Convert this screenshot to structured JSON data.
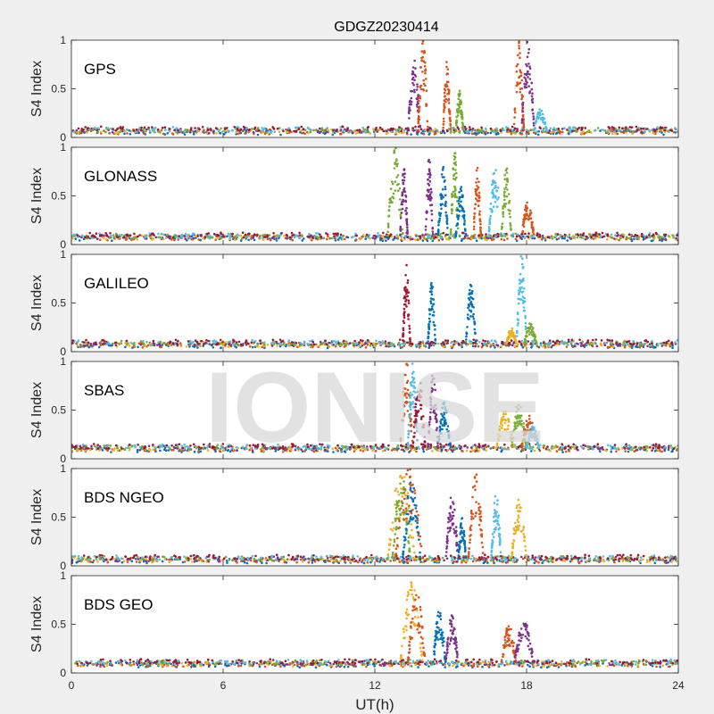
{
  "figure": {
    "title": "GDGZ20230414",
    "xlabel": "UT(h)",
    "watermark": "IONISE",
    "series_colors": [
      "#0072BD",
      "#D95319",
      "#EDB120",
      "#7E2F8E",
      "#77AC30",
      "#4DBEEE",
      "#A2142F"
    ]
  },
  "chart_data": [
    {
      "type": "scatter",
      "panel_label": "GPS",
      "ylabel": "S4 Index",
      "xlim": [
        0,
        24
      ],
      "ylim": [
        0,
        1
      ],
      "xticks": [
        0,
        6,
        12,
        18,
        24
      ],
      "yticks": [
        0,
        0.5,
        1
      ],
      "xtick_labels": [],
      "baseline": 0.07,
      "bursts": [
        {
          "series": 3,
          "x_start": 13.3,
          "x_end": 13.8,
          "peak": 0.8
        },
        {
          "series": 1,
          "x_start": 13.7,
          "x_end": 14.1,
          "peak": 1.0
        },
        {
          "series": 1,
          "x_start": 14.7,
          "x_end": 15.0,
          "peak": 0.8
        },
        {
          "series": 4,
          "x_start": 15.2,
          "x_end": 15.5,
          "peak": 0.48
        },
        {
          "series": 1,
          "x_start": 17.5,
          "x_end": 17.9,
          "peak": 1.0
        },
        {
          "series": 3,
          "x_start": 17.8,
          "x_end": 18.3,
          "peak": 1.0
        },
        {
          "series": 5,
          "x_start": 18.3,
          "x_end": 18.8,
          "peak": 0.3
        }
      ]
    },
    {
      "type": "scatter",
      "panel_label": "GLONASS",
      "ylabel": "S4 Index",
      "xlim": [
        0,
        24
      ],
      "ylim": [
        0,
        1
      ],
      "xticks": [
        0,
        6,
        12,
        18,
        24
      ],
      "yticks": [
        0,
        0.5,
        1
      ],
      "xtick_labels": [],
      "baseline": 0.08,
      "bursts": [
        {
          "series": 4,
          "x_start": 12.5,
          "x_end": 13.1,
          "peak": 1.0
        },
        {
          "series": 3,
          "x_start": 13.0,
          "x_end": 13.3,
          "peak": 0.8
        },
        {
          "series": 3,
          "x_start": 14.0,
          "x_end": 14.3,
          "peak": 0.9
        },
        {
          "series": 0,
          "x_start": 14.5,
          "x_end": 14.9,
          "peak": 0.8
        },
        {
          "series": 4,
          "x_start": 15.0,
          "x_end": 15.3,
          "peak": 1.0
        },
        {
          "series": 0,
          "x_start": 15.2,
          "x_end": 15.6,
          "peak": 0.6
        },
        {
          "series": 1,
          "x_start": 15.9,
          "x_end": 16.2,
          "peak": 0.8
        },
        {
          "series": 5,
          "x_start": 16.5,
          "x_end": 17.0,
          "peak": 0.8
        },
        {
          "series": 4,
          "x_start": 17.0,
          "x_end": 17.4,
          "peak": 0.8
        },
        {
          "series": 1,
          "x_start": 17.8,
          "x_end": 18.3,
          "peak": 0.45
        }
      ]
    },
    {
      "type": "scatter",
      "panel_label": "GALILEO",
      "ylabel": "S4 Index",
      "xlim": [
        0,
        24
      ],
      "ylim": [
        0,
        1
      ],
      "xticks": [
        0,
        6,
        12,
        18,
        24
      ],
      "yticks": [
        0,
        0.5,
        1
      ],
      "xtick_labels": [],
      "baseline": 0.08,
      "bursts": [
        {
          "series": 6,
          "x_start": 13.1,
          "x_end": 13.4,
          "peak": 0.9
        },
        {
          "series": 0,
          "x_start": 14.1,
          "x_end": 14.4,
          "peak": 0.75
        },
        {
          "series": 0,
          "x_start": 15.6,
          "x_end": 16.0,
          "peak": 0.7
        },
        {
          "series": 5,
          "x_start": 17.6,
          "x_end": 18.0,
          "peak": 1.0
        },
        {
          "series": 4,
          "x_start": 17.9,
          "x_end": 18.4,
          "peak": 0.3
        },
        {
          "series": 2,
          "x_start": 17.2,
          "x_end": 17.6,
          "peak": 0.25
        }
      ]
    },
    {
      "type": "scatter",
      "panel_label": "SBAS",
      "ylabel": "S4 Index",
      "xlim": [
        0,
        24
      ],
      "ylim": [
        0,
        1
      ],
      "xticks": [
        0,
        6,
        12,
        18,
        24
      ],
      "yticks": [
        0,
        0.5,
        1
      ],
      "xtick_labels": [],
      "baseline": 0.11,
      "bursts": [
        {
          "series": 1,
          "x_start": 13.0,
          "x_end": 13.5,
          "peak": 1.0
        },
        {
          "series": 5,
          "x_start": 13.3,
          "x_end": 13.7,
          "peak": 1.0
        },
        {
          "series": 6,
          "x_start": 13.5,
          "x_end": 14.0,
          "peak": 0.85
        },
        {
          "series": 3,
          "x_start": 14.1,
          "x_end": 14.5,
          "peak": 0.9
        },
        {
          "series": 0,
          "x_start": 14.5,
          "x_end": 15.0,
          "peak": 0.6
        },
        {
          "series": 2,
          "x_start": 16.8,
          "x_end": 17.5,
          "peak": 0.5
        },
        {
          "series": 4,
          "x_start": 17.4,
          "x_end": 18.0,
          "peak": 0.6
        },
        {
          "series": 1,
          "x_start": 17.8,
          "x_end": 18.4,
          "peak": 0.45
        },
        {
          "series": 5,
          "x_start": 18.0,
          "x_end": 18.5,
          "peak": 0.35
        }
      ]
    },
    {
      "type": "scatter",
      "panel_label": "BDS NGEO",
      "ylabel": "S4 Index",
      "xlim": [
        0,
        24
      ],
      "ylim": [
        0,
        1
      ],
      "xticks": [
        0,
        6,
        12,
        18,
        24
      ],
      "yticks": [
        0,
        0.5,
        1
      ],
      "xtick_labels": [],
      "baseline": 0.07,
      "bursts": [
        {
          "series": 2,
          "x_start": 12.5,
          "x_end": 13.6,
          "peak": 1.0
        },
        {
          "series": 1,
          "x_start": 12.8,
          "x_end": 13.9,
          "peak": 1.0
        },
        {
          "series": 4,
          "x_start": 12.7,
          "x_end": 13.4,
          "peak": 1.0
        },
        {
          "series": 0,
          "x_start": 13.1,
          "x_end": 13.8,
          "peak": 0.95
        },
        {
          "series": 3,
          "x_start": 14.8,
          "x_end": 15.3,
          "peak": 0.75
        },
        {
          "series": 0,
          "x_start": 15.3,
          "x_end": 15.6,
          "peak": 0.5
        },
        {
          "series": 1,
          "x_start": 15.7,
          "x_end": 16.3,
          "peak": 0.95
        },
        {
          "series": 5,
          "x_start": 16.6,
          "x_end": 17.0,
          "peak": 0.75
        },
        {
          "series": 2,
          "x_start": 17.4,
          "x_end": 18.0,
          "peak": 0.7
        }
      ]
    },
    {
      "type": "scatter",
      "panel_label": "BDS GEO",
      "ylabel": "S4 Index",
      "xlim": [
        0,
        24
      ],
      "ylim": [
        0,
        1
      ],
      "xticks": [
        0,
        6,
        12,
        18,
        24
      ],
      "yticks": [
        0,
        0.5,
        1
      ],
      "xtick_labels": [
        "0",
        "6",
        "12",
        "18",
        "24"
      ],
      "baseline": 0.1,
      "bursts": [
        {
          "series": 2,
          "x_start": 13.0,
          "x_end": 13.9,
          "peak": 0.95
        },
        {
          "series": 1,
          "x_start": 13.3,
          "x_end": 14.0,
          "peak": 0.85
        },
        {
          "series": 0,
          "x_start": 14.3,
          "x_end": 14.8,
          "peak": 0.65
        },
        {
          "series": 3,
          "x_start": 14.8,
          "x_end": 15.3,
          "peak": 0.6
        },
        {
          "series": 1,
          "x_start": 17.0,
          "x_end": 17.6,
          "peak": 0.5
        },
        {
          "series": 3,
          "x_start": 17.5,
          "x_end": 18.3,
          "peak": 0.55
        }
      ]
    }
  ]
}
